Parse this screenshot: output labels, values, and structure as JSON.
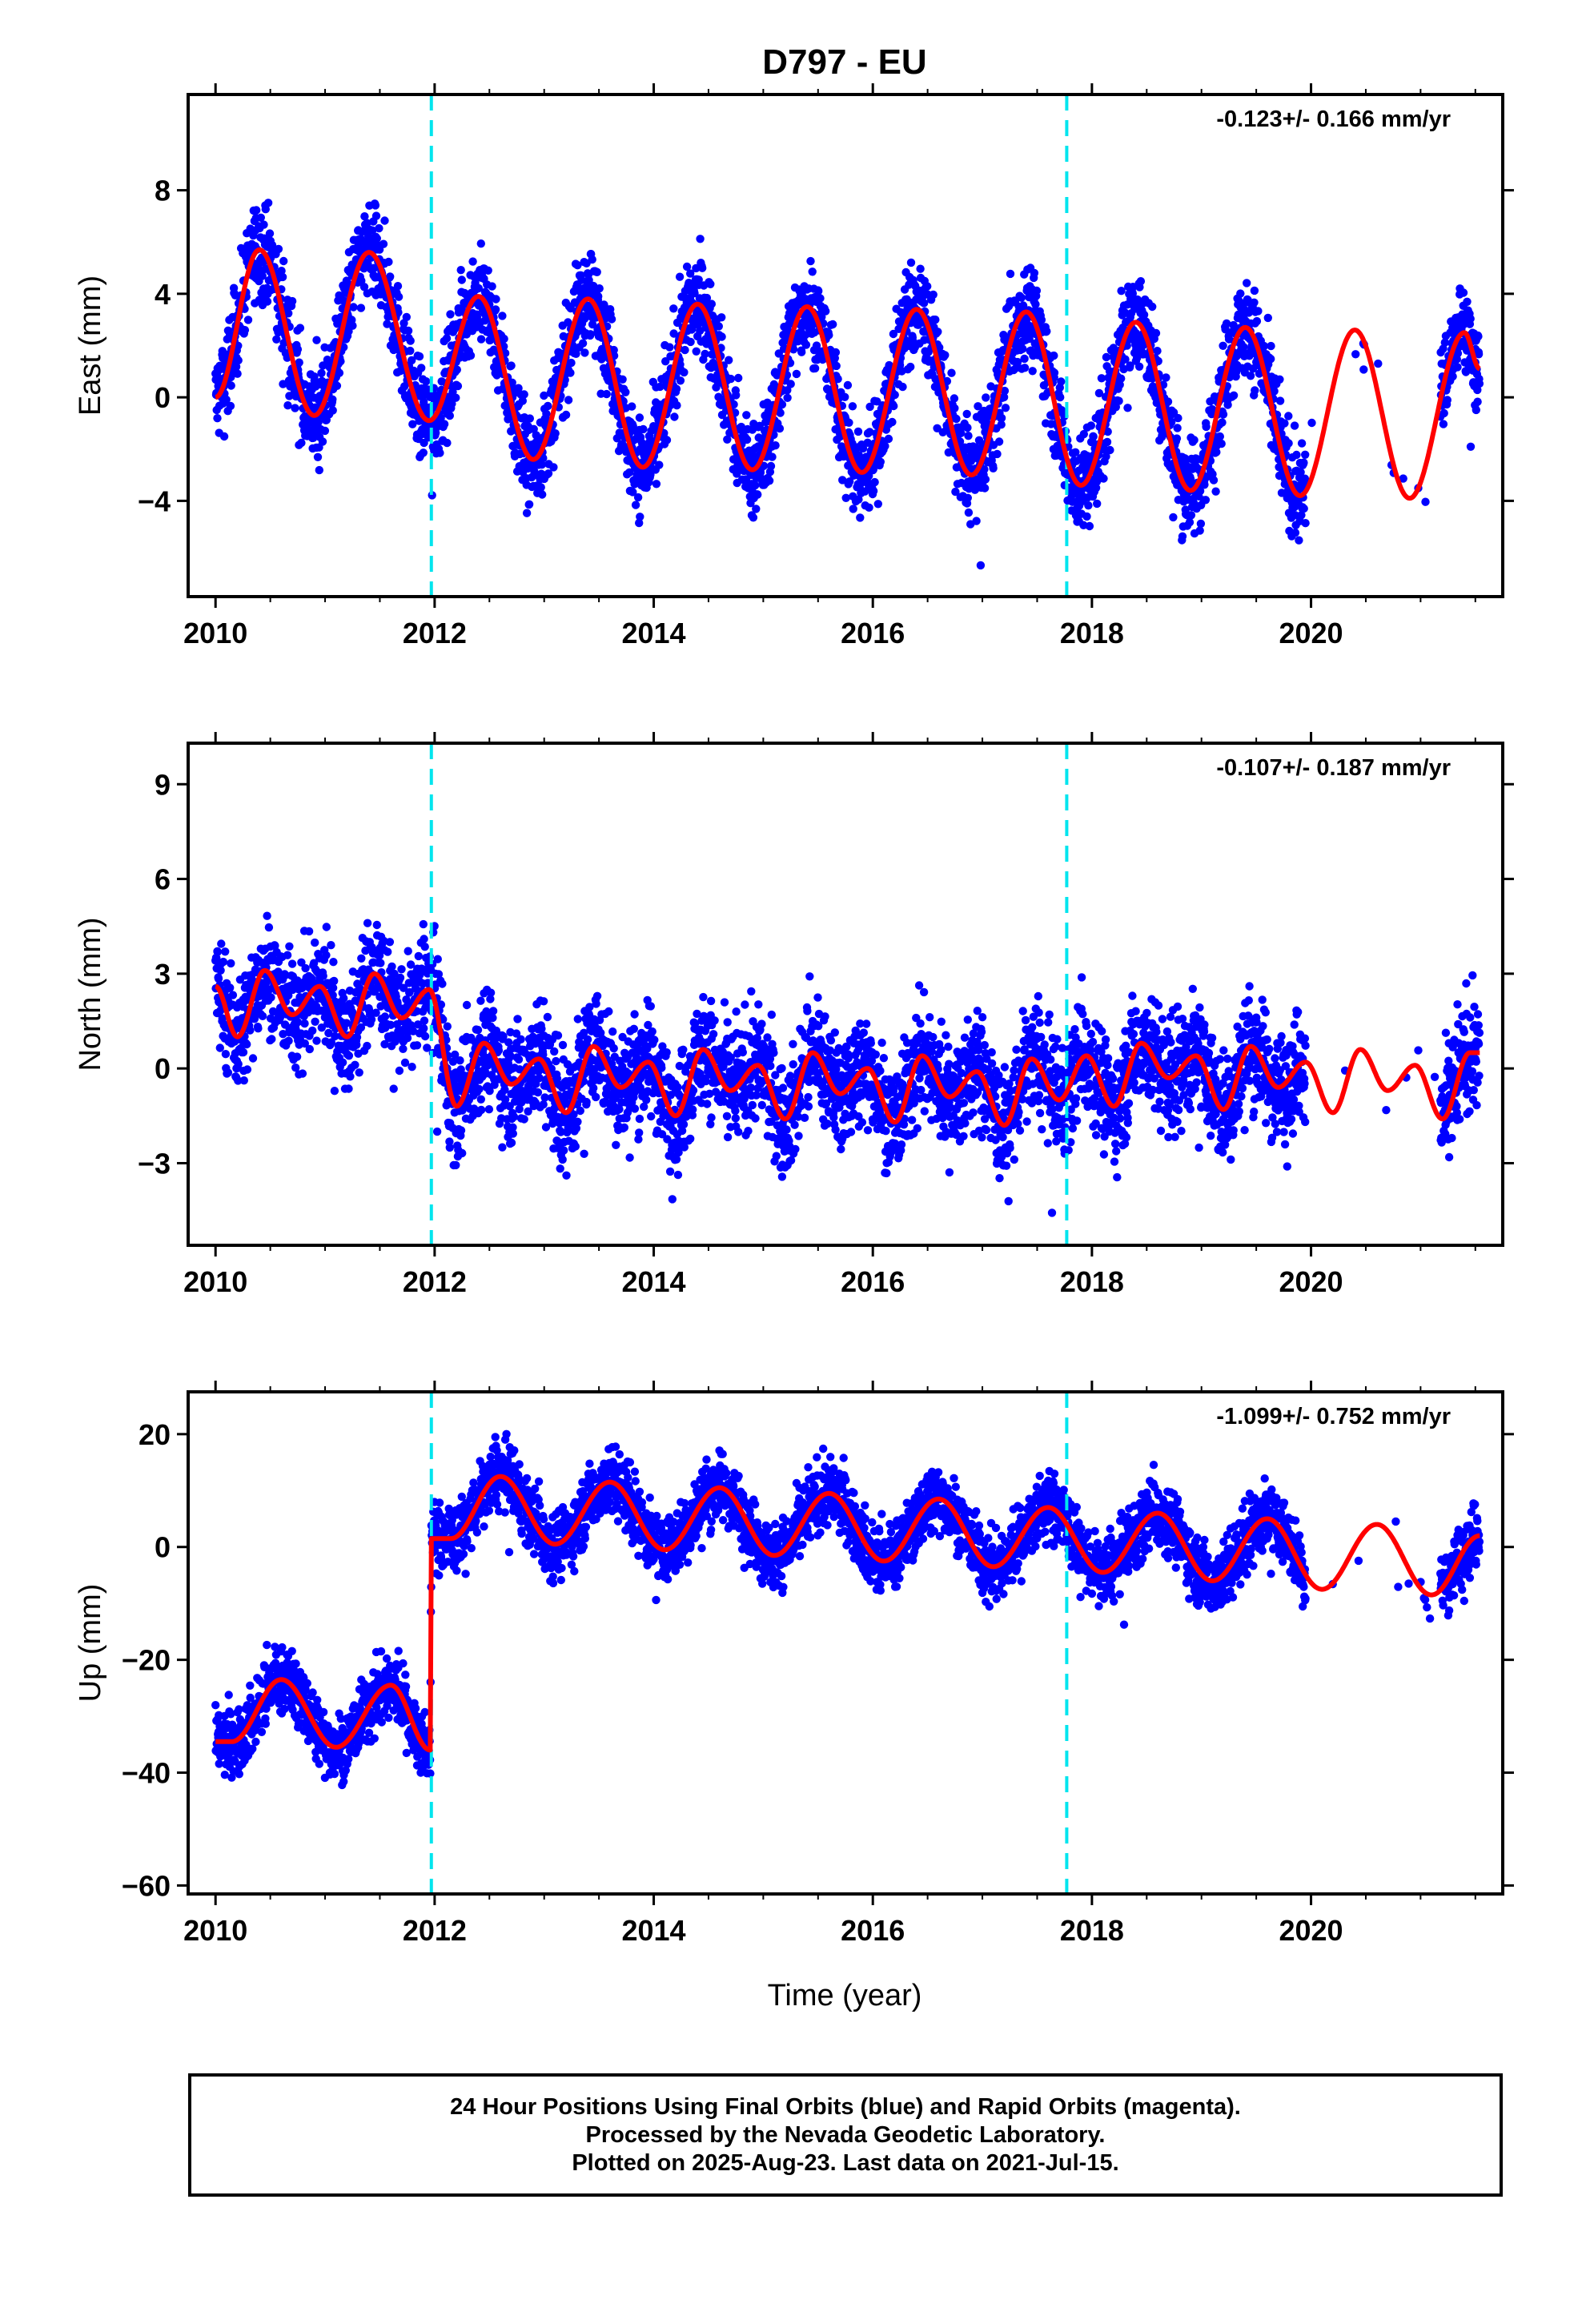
{
  "title": "D797 - EU",
  "xlabel": "Time (year)",
  "colors": {
    "points": "#0000ff",
    "model": "#ff0000",
    "offset_lines": "#00e5ee",
    "frame": "#000000"
  },
  "caption": {
    "line1": "24 Hour Positions Using Final Orbits (blue) and Rapid Orbits (magenta).",
    "line2": "Processed by the Nevada Geodetic Laboratory.",
    "line3": "Plotted on 2025-Aug-23. Last data on 2021-Jul-15."
  },
  "chart_data": [
    {
      "type": "scatter",
      "component": "East",
      "ylabel": "East (mm)",
      "velocity_label": "-0.123+/- 0.166 mm/yr",
      "xlim": [
        2009.75,
        2021.75
      ],
      "ylim": [
        -7.7,
        11.7
      ],
      "xticks": [
        2010,
        2012,
        2014,
        2016,
        2018,
        2020
      ],
      "yticks": [
        -4,
        0,
        4,
        8
      ],
      "offset_epochs": [
        2011.97,
        2017.77
      ],
      "data_span": [
        2010.0,
        2021.54
      ],
      "data_gap": [
        2019.95,
        2021.18
      ],
      "model": {
        "x": [
          2010.0,
          2010.4,
          2010.9,
          2011.4,
          2011.95,
          2012.4,
          2012.9,
          2013.4,
          2013.9,
          2014.4,
          2014.9,
          2015.4,
          2015.9,
          2016.4,
          2016.9,
          2017.4,
          2017.9,
          2018.4,
          2018.9,
          2019.4,
          2019.9,
          2020.4,
          2020.9,
          2021.4,
          2021.54
        ],
        "y": [
          0.0,
          5.7,
          -0.7,
          5.6,
          -0.9,
          3.9,
          -2.4,
          3.8,
          -2.7,
          3.6,
          -2.8,
          3.5,
          -2.9,
          3.4,
          -3.0,
          3.3,
          -3.4,
          2.9,
          -3.6,
          2.7,
          -3.8,
          2.6,
          -3.9,
          2.5,
          1.1
        ]
      }
    },
    {
      "type": "scatter",
      "component": "North",
      "ylabel": "North (mm)",
      "velocity_label": "-0.107+/- 0.187 mm/yr",
      "xlim": [
        2009.75,
        2021.75
      ],
      "ylim": [
        -5.6,
        10.3
      ],
      "xticks": [
        2010,
        2012,
        2014,
        2016,
        2018,
        2020
      ],
      "yticks": [
        -3,
        0,
        3,
        6,
        9
      ],
      "offset_epochs": [
        2011.97,
        2017.77
      ],
      "data_span": [
        2010.0,
        2021.54
      ],
      "data_gap": [
        2019.95,
        2021.18
      ],
      "model": {
        "x": [
          2010.0,
          2010.2,
          2010.45,
          2010.7,
          2010.95,
          2011.2,
          2011.45,
          2011.7,
          2011.95,
          2012.2,
          2012.45,
          2012.7,
          2012.95,
          2013.2,
          2013.45,
          2013.7,
          2013.95,
          2014.2,
          2014.45,
          2014.7,
          2014.95,
          2015.2,
          2015.45,
          2015.7,
          2015.95,
          2016.2,
          2016.45,
          2016.7,
          2016.95,
          2017.2,
          2017.45,
          2017.7,
          2017.95,
          2018.2,
          2018.45,
          2018.7,
          2018.95,
          2019.2,
          2019.45,
          2019.7,
          2019.95,
          2020.2,
          2020.45,
          2020.7,
          2020.95,
          2021.2,
          2021.45,
          2021.54
        ],
        "y": [
          2.6,
          1.0,
          3.1,
          1.7,
          2.6,
          1.0,
          3.0,
          1.6,
          2.5,
          -1.2,
          0.8,
          -0.5,
          0.3,
          -1.4,
          0.7,
          -0.6,
          0.2,
          -1.5,
          0.6,
          -0.7,
          0.1,
          -1.6,
          0.5,
          -0.8,
          0.0,
          -1.7,
          0.4,
          -0.9,
          -0.1,
          -1.8,
          0.3,
          -1.0,
          0.4,
          -1.2,
          0.8,
          -0.3,
          0.4,
          -1.3,
          0.7,
          -0.6,
          0.2,
          -1.4,
          0.6,
          -0.7,
          0.1,
          -1.6,
          0.5,
          0.5
        ]
      }
    },
    {
      "type": "scatter",
      "component": "Up",
      "ylabel": "Up (mm)",
      "velocity_label": "-1.099+/- 0.752 mm/yr",
      "xlim": [
        2009.75,
        2021.75
      ],
      "ylim": [
        -61.5,
        27.5
      ],
      "xticks": [
        2010,
        2012,
        2014,
        2016,
        2018,
        2020
      ],
      "yticks": [
        -60,
        -40,
        -20,
        0,
        20
      ],
      "offset_epochs": [
        2011.97,
        2017.77
      ],
      "data_span": [
        2010.0,
        2021.54
      ],
      "data_gap": [
        2019.95,
        2021.18
      ],
      "model": {
        "x": [
          2010.0,
          2010.15,
          2010.6,
          2011.1,
          2011.6,
          2011.96,
          2011.97,
          2012.15,
          2012.6,
          2013.1,
          2013.6,
          2014.1,
          2014.6,
          2015.1,
          2015.6,
          2016.1,
          2016.6,
          2017.1,
          2017.6,
          2018.1,
          2018.6,
          2019.1,
          2019.6,
          2020.1,
          2020.6,
          2021.1,
          2021.54
        ],
        "y": [
          -34.5,
          -34.5,
          -23.5,
          -35.5,
          -24.5,
          -36.0,
          1.5,
          1.5,
          12.5,
          0.5,
          11.5,
          -0.5,
          10.5,
          -1.5,
          9.5,
          -2.5,
          8.5,
          -3.5,
          7.0,
          -4.5,
          6.0,
          -6.0,
          5.0,
          -7.5,
          4.0,
          -8.5,
          2.0
        ]
      }
    }
  ]
}
